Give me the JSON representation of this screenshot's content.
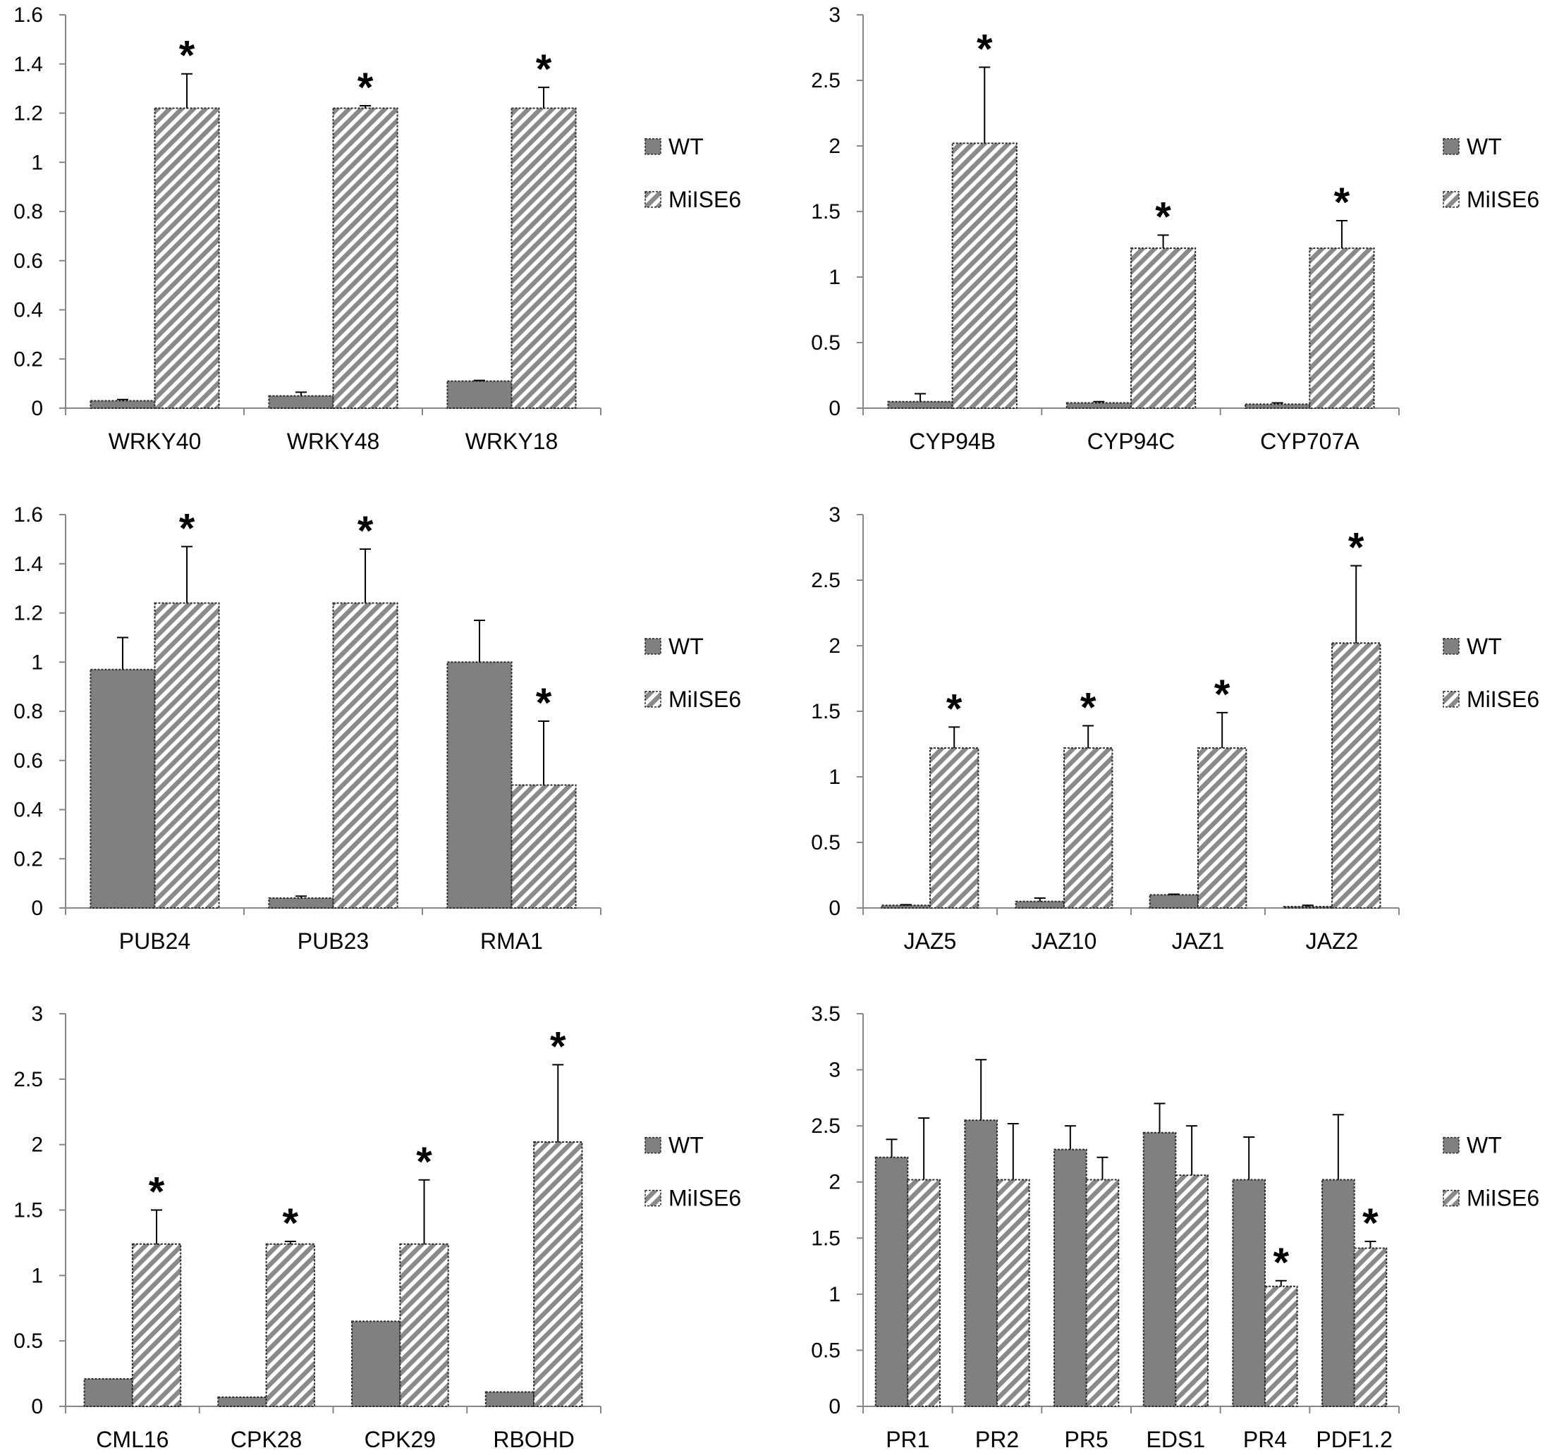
{
  "chart_data": [
    {
      "type": "bar",
      "series_names": [
        "WT",
        "MiISE6"
      ],
      "categories": [
        "WRKY40",
        "WRKY48",
        "WRKY18"
      ],
      "series": [
        {
          "name": "WT",
          "values": [
            0.03,
            0.05,
            0.11
          ],
          "errors": [
            0.005,
            0.015,
            0.003
          ]
        },
        {
          "name": "MiISE6",
          "values": [
            1.22,
            1.22,
            1.22
          ],
          "errors": [
            0.14,
            0.01,
            0.085
          ]
        }
      ],
      "significant": [
        false,
        true,
        false,
        true,
        false,
        true
      ],
      "star_label": "*",
      "yticks": [
        "0",
        "0.2",
        "0.4",
        "0.6",
        "0.8",
        "1",
        "1.2",
        "1.4",
        "1.6"
      ],
      "ylim": [
        0,
        1.6
      ],
      "legend": [
        "WT",
        "MiISE6"
      ]
    },
    {
      "type": "bar",
      "series_names": [
        "WT",
        "MiISE6"
      ],
      "categories": [
        "CYP94B",
        "CYP94C",
        "CYP707A"
      ],
      "series": [
        {
          "name": "WT",
          "values": [
            0.05,
            0.04,
            0.03
          ],
          "errors": [
            0.06,
            0.01,
            0.01
          ]
        },
        {
          "name": "MiISE6",
          "values": [
            2.02,
            1.22,
            1.22
          ],
          "errors": [
            0.58,
            0.1,
            0.21
          ]
        }
      ],
      "significant": [
        false,
        true,
        false,
        true,
        false,
        true
      ],
      "star_label": "*",
      "yticks": [
        "0",
        "0.5",
        "1",
        "1.5",
        "2",
        "2.5",
        "3"
      ],
      "ylim": [
        0,
        3
      ],
      "legend": [
        "WT",
        "MiISE6"
      ]
    },
    {
      "type": "bar",
      "series_names": [
        "WT",
        "MiISE6"
      ],
      "categories": [
        "PUB24",
        "PUB23",
        "RMA1"
      ],
      "series": [
        {
          "name": "WT",
          "values": [
            0.97,
            0.04,
            1.0
          ],
          "errors": [
            0.13,
            0.008,
            0.17
          ]
        },
        {
          "name": "MiISE6",
          "values": [
            1.24,
            1.24,
            0.5
          ],
          "errors": [
            0.23,
            0.22,
            0.26
          ]
        }
      ],
      "significant": [
        false,
        true,
        false,
        true,
        false,
        true
      ],
      "star_label": "*",
      "yticks": [
        "0",
        "0.2",
        "0.4",
        "0.6",
        "0.8",
        "1",
        "1.2",
        "1.4",
        "1.6"
      ],
      "ylim": [
        0,
        1.6
      ],
      "legend": [
        "WT",
        "MiISE6"
      ]
    },
    {
      "type": "bar",
      "series_names": [
        "WT",
        "MiISE6"
      ],
      "categories": [
        "JAZ5",
        "JAZ10",
        "JAZ1",
        "JAZ2"
      ],
      "series": [
        {
          "name": "WT",
          "values": [
            0.02,
            0.05,
            0.1,
            0.01
          ],
          "errors": [
            0.005,
            0.025,
            0.005,
            0.01
          ]
        },
        {
          "name": "MiISE6",
          "values": [
            1.22,
            1.22,
            1.22,
            2.02
          ],
          "errors": [
            0.16,
            0.17,
            0.27,
            0.59
          ]
        }
      ],
      "significant": [
        false,
        true,
        false,
        true,
        false,
        true,
        false,
        true
      ],
      "star_label": "*",
      "yticks": [
        "0",
        "0.5",
        "1",
        "1.5",
        "2",
        "2.5",
        "3"
      ],
      "ylim": [
        0,
        3
      ],
      "legend": [
        "WT",
        "MiISE6"
      ]
    },
    {
      "type": "bar",
      "series_names": [
        "WT",
        "MiISE6"
      ],
      "categories": [
        "CML16",
        "CPK28",
        "CPK29",
        "RBOHD"
      ],
      "series": [
        {
          "name": "WT",
          "values": [
            0.21,
            0.07,
            0.65,
            0.11
          ],
          "errors": [
            0,
            0,
            0,
            0
          ]
        },
        {
          "name": "MiISE6",
          "values": [
            1.24,
            1.24,
            1.24,
            2.02
          ],
          "errors": [
            0.26,
            0.02,
            0.49,
            0.59
          ]
        }
      ],
      "significant": [
        false,
        true,
        false,
        true,
        false,
        true,
        false,
        true
      ],
      "star_label": "*",
      "yticks": [
        "0",
        "0.5",
        "1",
        "1.5",
        "2",
        "2.5",
        "3"
      ],
      "ylim": [
        0,
        3
      ],
      "legend": [
        "WT",
        "MiISE6"
      ]
    },
    {
      "type": "bar",
      "series_names": [
        "WT",
        "MiISE6"
      ],
      "categories": [
        "PR1",
        "PR2",
        "PR5",
        "EDS1",
        "PR4",
        "PDF1.2"
      ],
      "series": [
        {
          "name": "WT",
          "values": [
            2.22,
            2.55,
            2.29,
            2.44,
            2.02,
            2.02
          ],
          "errors": [
            0.16,
            0.54,
            0.21,
            0.26,
            0.38,
            0.58
          ]
        },
        {
          "name": "MiISE6",
          "values": [
            2.02,
            2.02,
            2.02,
            2.06,
            1.07,
            1.41
          ],
          "errors": [
            0.55,
            0.5,
            0.2,
            0.44,
            0.05,
            0.06
          ]
        }
      ],
      "significant": [
        false,
        false,
        false,
        false,
        false,
        false,
        false,
        false,
        false,
        true,
        false,
        true
      ],
      "star_label": "*",
      "yticks": [
        "0",
        "0.5",
        "1",
        "1.5",
        "2",
        "2.5",
        "3",
        "3.5"
      ],
      "ylim": [
        0,
        3.5
      ],
      "legend": [
        "WT",
        "MiISE6"
      ]
    }
  ]
}
